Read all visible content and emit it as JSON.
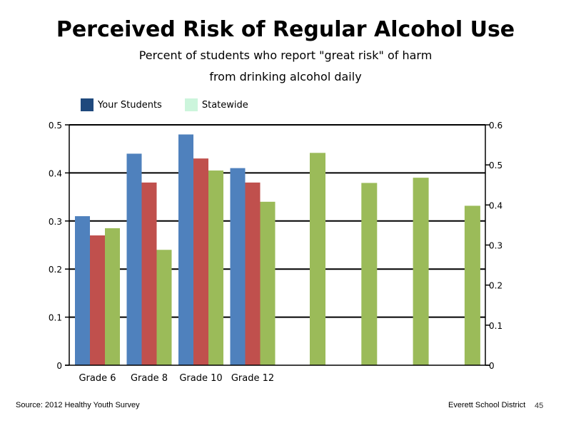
{
  "chart_data": {
    "type": "bar",
    "title": "Perceived Risk of Regular Alcohol Use",
    "subtitle_line1": "Percent of students who report \"great risk\" of harm",
    "subtitle_line2": "from drinking alcohol daily",
    "legend": [
      {
        "label": "Your Students",
        "color": "#1f497d"
      },
      {
        "label": "Statewide",
        "color": "#ccf5dc"
      }
    ],
    "legend_position": "top-left",
    "categories": [
      "Grade 6",
      "Grade 8",
      "Grade 10",
      "Grade 12"
    ],
    "series": [
      {
        "axis": "left",
        "color": "#4f81bd",
        "values": [
          0.31,
          0.44,
          0.48,
          0.41
        ]
      },
      {
        "axis": "left",
        "color": "#c0504d",
        "values": [
          0.27,
          0.38,
          0.43,
          0.38
        ]
      },
      {
        "axis": "left",
        "color": "#9bbb59",
        "values": [
          0.285,
          0.24,
          0.405,
          0.34
        ]
      },
      {
        "axis": "right",
        "color": "#9bbb59",
        "values": [
          0.53,
          0.455,
          0.468,
          0.398
        ]
      }
    ],
    "y_left": {
      "min": 0,
      "max": 0.5,
      "ticks": [
        "0",
        "0.1",
        "0.2",
        "0.3",
        "0.4",
        "0.5"
      ]
    },
    "y_right": {
      "min": 0,
      "max": 0.6,
      "ticks": [
        "0",
        "0.1",
        "0.2",
        "0.3",
        "0.4",
        "0.5",
        "0.6"
      ]
    },
    "grid": true
  },
  "footer": {
    "source": "Source: 2012 Healthy Youth Survey",
    "district": "Everett School District",
    "page": "45"
  }
}
